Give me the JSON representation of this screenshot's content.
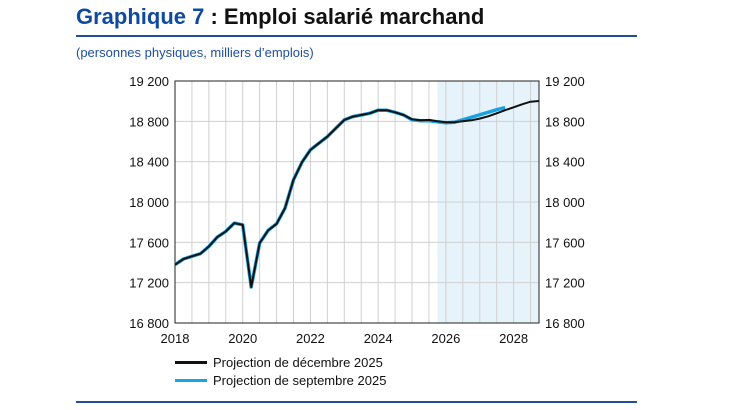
{
  "title": {
    "number": "Graphique 7",
    "text": " : Emploi salarié marchand"
  },
  "subtitle": "(personnes physiques, milliers d’emplois)",
  "colors": {
    "title_blue": "#0f4a9c",
    "december": "#111111",
    "september": "#1aa3e0",
    "projection_shade": "#e6f3fb",
    "grid": "#d0d0d0"
  },
  "chart_data": {
    "type": "line",
    "title": "Emploi salarié marchand",
    "ylabel": "personnes physiques, milliers d’emplois",
    "xlim": [
      2018,
      2028.75
    ],
    "ylim": [
      16800,
      19200
    ],
    "y_ticks": [
      16800,
      17200,
      17600,
      18000,
      18400,
      18800,
      19200
    ],
    "y_tick_labels": [
      "16 800",
      "17 200",
      "17 600",
      "18 000",
      "18 400",
      "18 800",
      "19 200"
    ],
    "x_ticks": [
      2018,
      2020,
      2022,
      2024,
      2026,
      2028
    ],
    "x_tick_labels": [
      "2018",
      "2020",
      "2022",
      "2024",
      "2026",
      "2028"
    ],
    "grid": true,
    "projection_shaded_from": 2025.75,
    "legend_position": "bottom",
    "series": [
      {
        "name": "Projection de décembre 2025",
        "color": "#111111",
        "x": [
          2018,
          2018.25,
          2018.5,
          2018.75,
          2019,
          2019.25,
          2019.5,
          2019.75,
          2020,
          2020.25,
          2020.5,
          2020.75,
          2021,
          2021.25,
          2021.5,
          2021.75,
          2022,
          2022.25,
          2022.5,
          2022.75,
          2023,
          2023.25,
          2023.5,
          2023.75,
          2024,
          2024.25,
          2024.5,
          2024.75,
          2025,
          2025.25,
          2025.5,
          2025.75,
          2026,
          2026.25,
          2026.5,
          2026.75,
          2027,
          2027.25,
          2027.5,
          2027.75,
          2028,
          2028.25,
          2028.5,
          2028.75
        ],
        "y": [
          17378,
          17435,
          17461,
          17487,
          17560,
          17652,
          17708,
          17791,
          17774,
          17157,
          17593,
          17718,
          17784,
          17939,
          18220,
          18395,
          18517,
          18583,
          18649,
          18731,
          18814,
          18847,
          18863,
          18880,
          18910,
          18910,
          18890,
          18863,
          18820,
          18810,
          18814,
          18800,
          18791,
          18791,
          18800,
          18810,
          18827,
          18850,
          18880,
          18910,
          18939,
          18969,
          18995,
          19002
        ]
      },
      {
        "name": "Projection de septembre 2025",
        "color": "#1aa3e0",
        "x": [
          2018,
          2018.25,
          2018.5,
          2018.75,
          2019,
          2019.25,
          2019.5,
          2019.75,
          2020,
          2020.25,
          2020.5,
          2020.75,
          2021,
          2021.25,
          2021.5,
          2021.75,
          2022,
          2022.25,
          2022.5,
          2022.75,
          2023,
          2023.25,
          2023.5,
          2023.75,
          2024,
          2024.25,
          2024.5,
          2024.75,
          2025,
          2025.25,
          2025.5,
          2025.75,
          2026,
          2026.25,
          2026.5,
          2026.75,
          2027,
          2027.25,
          2027.5,
          2027.75
        ],
        "y": [
          17378,
          17435,
          17461,
          17487,
          17560,
          17652,
          17708,
          17791,
          17774,
          17157,
          17593,
          17718,
          17784,
          17939,
          18220,
          18395,
          18517,
          18583,
          18649,
          18731,
          18814,
          18847,
          18863,
          18880,
          18910,
          18910,
          18890,
          18863,
          18815,
          18805,
          18805,
          18795,
          18785,
          18790,
          18815,
          18840,
          18865,
          18890,
          18915,
          18936
        ]
      }
    ]
  }
}
